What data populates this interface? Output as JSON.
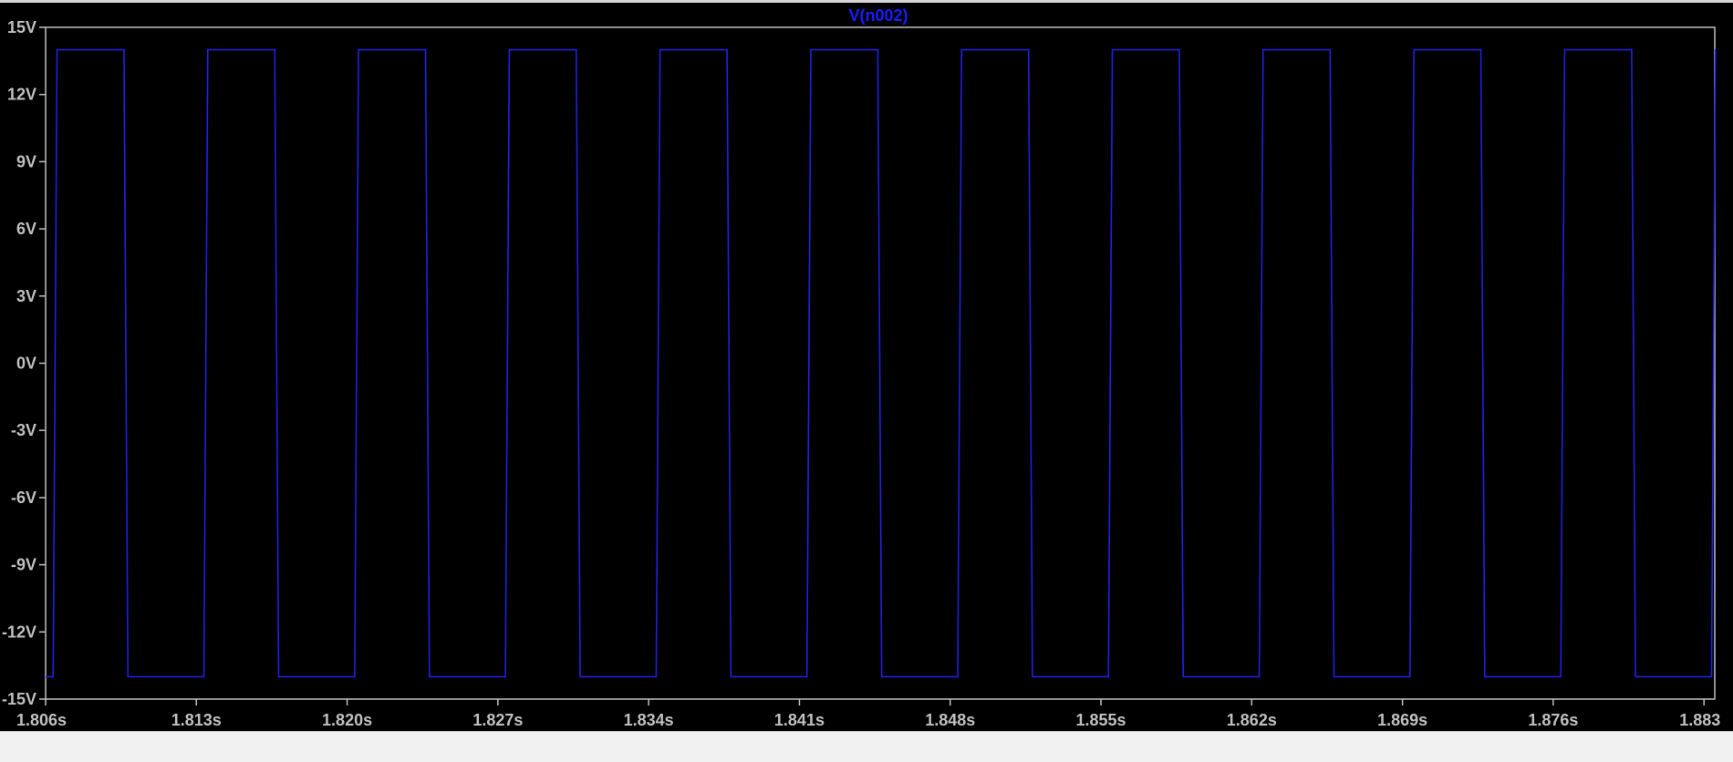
{
  "colors": {
    "background": "#000000",
    "frame": "#c0c0c0",
    "label": "#c0c0c0",
    "trace": "#2020e0",
    "title": "#1a1aff",
    "statusbar": "#f0f0f0"
  },
  "chart_data": {
    "type": "line",
    "title": "V(n002)",
    "xlabel": "",
    "ylabel": "",
    "xlim": [
      1.806,
      1.8835
    ],
    "ylim": [
      -15,
      15
    ],
    "grid": false,
    "x_ticks": [
      1.806,
      1.813,
      1.82,
      1.827,
      1.834,
      1.841,
      1.848,
      1.855,
      1.862,
      1.869,
      1.876,
      1.883
    ],
    "x_tick_labels": [
      "1.806s",
      "1.813s",
      "1.820s",
      "1.827s",
      "1.834s",
      "1.841s",
      "1.848s",
      "1.855s",
      "1.862s",
      "1.869s",
      "1.876s",
      "1.883"
    ],
    "y_ticks": [
      15,
      12,
      9,
      6,
      3,
      0,
      -3,
      -6,
      -9,
      -12,
      -15
    ],
    "y_tick_labels": [
      "15V",
      "12V",
      "9V",
      "6V",
      "3V",
      "0V",
      "-3V",
      "-6V",
      "-9V",
      "-12V",
      "-15V"
    ],
    "series": [
      {
        "name": "V(n002)",
        "color": "#2020e0",
        "waveform": "square",
        "high": 14.0,
        "low": -14.0,
        "period": 0.007,
        "duty": 0.47,
        "first_rising_edge": 1.80635,
        "x_start": 1.806,
        "x_end": 1.8835
      }
    ]
  }
}
